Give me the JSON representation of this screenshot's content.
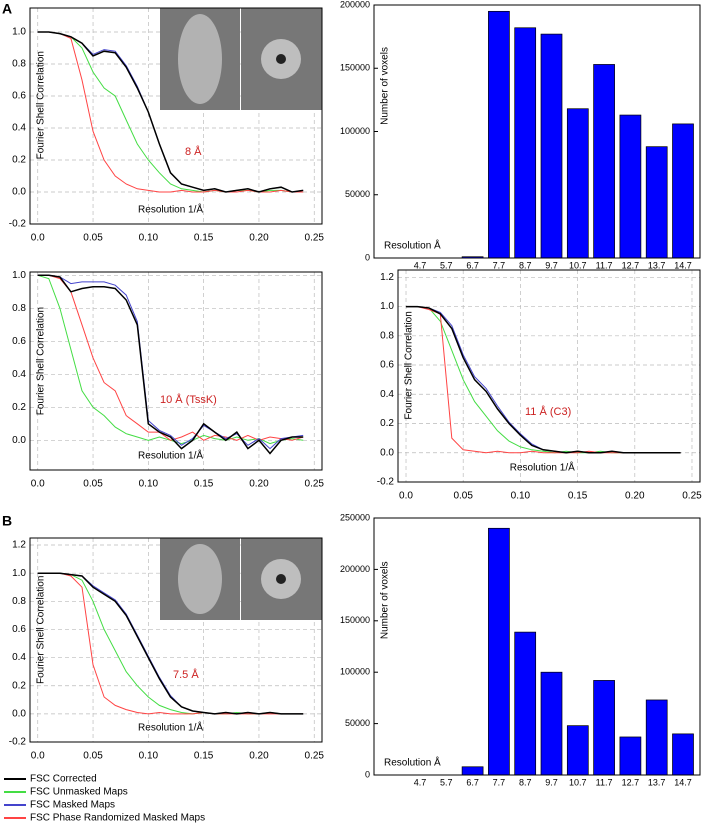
{
  "panels": [
    "A",
    "B"
  ],
  "chart_data": [
    {
      "type": "line",
      "annotation": "8 Å",
      "xlabel": "Resolution 1/Å",
      "ylabel": "Fourier Shell Correlation",
      "xlim": [
        -0.007,
        0.257
      ],
      "ylim": [
        -0.2,
        1.15
      ],
      "xticks": [
        {
          "value": 0,
          "label": "0.0"
        },
        0.05,
        {
          "value": 0.1,
          "label": "0.10"
        },
        0.15,
        {
          "value": 0.2,
          "label": "0.20"
        },
        0.25
      ],
      "yticks": [
        -0.2,
        {
          "value": 0,
          "label": "0.0"
        },
        0.2,
        0.4,
        0.6,
        0.8,
        {
          "value": 1,
          "label": "1.0"
        }
      ],
      "grid": true,
      "x": [
        0,
        0.01,
        0.02,
        0.03,
        0.04,
        0.05,
        0.06,
        0.07,
        0.08,
        0.09,
        0.1,
        0.11,
        0.12,
        0.13,
        0.14,
        0.15,
        0.16,
        0.17,
        0.18,
        0.19,
        0.2,
        0.21,
        0.22,
        0.23,
        0.24
      ],
      "series": [
        {
          "name": "FSC Unmasked Maps",
          "color": "#44dd44",
          "values": [
            1,
            1,
            0.99,
            0.97,
            0.9,
            0.75,
            0.65,
            0.6,
            0.45,
            0.3,
            0.2,
            0.12,
            0.05,
            0.02,
            0.01,
            0,
            0.01,
            0,
            0.01,
            0.01,
            0,
            0.01,
            0.01,
            0,
            0
          ]
        },
        {
          "name": "FSC Phase Randomized Masked Maps",
          "color": "#ff4444",
          "values": [
            1,
            1,
            0.99,
            0.96,
            0.7,
            0.38,
            0.2,
            0.1,
            0.05,
            0.02,
            0.01,
            0,
            0,
            0.01,
            0,
            0,
            0.01,
            0,
            0,
            0.01,
            0,
            0,
            0.01,
            0,
            0
          ]
        },
        {
          "name": "FSC Masked Maps",
          "color": "#4444cc",
          "values": [
            1,
            1,
            0.99,
            0.97,
            0.93,
            0.86,
            0.89,
            0.88,
            0.79,
            0.66,
            0.5,
            0.3,
            0.12,
            0.05,
            0.03,
            0.01,
            0.02,
            0,
            0.01,
            0.02,
            0,
            0.02,
            0.03,
            0,
            0.01
          ]
        },
        {
          "name": "FSC Corrected",
          "color": "#000000",
          "values": [
            1,
            1,
            0.99,
            0.97,
            0.93,
            0.85,
            0.88,
            0.87,
            0.78,
            0.65,
            0.5,
            0.3,
            0.12,
            0.05,
            0.03,
            0.01,
            0.02,
            0,
            0.01,
            0.02,
            0,
            0.02,
            0.03,
            0,
            0.01
          ]
        }
      ]
    },
    {
      "type": "bar",
      "xlabel": "Resolution Å",
      "ylabel": "Number of voxels",
      "color": "#0000ff",
      "categories": [
        "4.7",
        "5.7",
        "6.7",
        "7.7",
        "8.7",
        "9.7",
        "10.7",
        "11.7",
        "12.7",
        "13.7",
        "14.7"
      ],
      "values": [
        0,
        0,
        1000,
        195000,
        182000,
        177000,
        118000,
        153000,
        113000,
        88000,
        106000
      ],
      "ylim": [
        0,
        200000
      ],
      "yticks": [
        0,
        50000,
        100000,
        150000,
        200000
      ]
    },
    {
      "type": "line",
      "annotation": "10 Å (TssK)",
      "xlabel": "Resolution 1/Å",
      "ylabel": "Fourier Shell Correlation",
      "xlim": [
        -0.007,
        0.257
      ],
      "ylim": [
        -0.18,
        1.02
      ],
      "xticks": [
        {
          "value": 0,
          "label": "0.0"
        },
        0.05,
        {
          "value": 0.1,
          "label": "0.10"
        },
        0.15,
        {
          "value": 0.2,
          "label": "0.20"
        },
        0.25
      ],
      "yticks": [
        {
          "value": 0,
          "label": "0.0"
        },
        0.2,
        0.4,
        0.6,
        0.8,
        {
          "value": 1,
          "label": "1.0"
        }
      ],
      "grid": true,
      "x": [
        0,
        0.01,
        0.02,
        0.03,
        0.04,
        0.05,
        0.06,
        0.07,
        0.08,
        0.09,
        0.1,
        0.11,
        0.12,
        0.13,
        0.14,
        0.15,
        0.16,
        0.17,
        0.18,
        0.19,
        0.2,
        0.21,
        0.22,
        0.23,
        0.24
      ],
      "series": [
        {
          "name": "FSC Unmasked Maps",
          "color": "#44dd44",
          "values": [
            1,
            0.98,
            0.8,
            0.55,
            0.3,
            0.2,
            0.15,
            0.08,
            0.04,
            0.02,
            0,
            0.02,
            0,
            -0.02,
            0,
            0.03,
            0.01,
            0,
            0.02,
            0,
            0.01,
            -0.02,
            0,
            0.01,
            0
          ]
        },
        {
          "name": "FSC Phase Randomized Masked Maps",
          "color": "#ff4444",
          "values": [
            1,
            1,
            0.98,
            0.9,
            0.7,
            0.5,
            0.35,
            0.3,
            0.15,
            0.1,
            0.05,
            0.05,
            0,
            0.02,
            0.05,
            0,
            0.03,
            0.02,
            0,
            0.03,
            0,
            0.02,
            0.01,
            0,
            0.02
          ]
        },
        {
          "name": "FSC Masked Maps",
          "color": "#4444cc",
          "values": [
            1,
            1,
            0.99,
            0.95,
            0.96,
            0.96,
            0.96,
            0.94,
            0.88,
            0.72,
            0.12,
            0.06,
            0.03,
            -0.03,
            0.01,
            0.09,
            0.05,
            0.01,
            0.04,
            -0.03,
            0.01,
            -0.05,
            0.01,
            0.02,
            0.03
          ]
        },
        {
          "name": "FSC Corrected",
          "color": "#000000",
          "values": [
            1,
            1,
            0.99,
            0.9,
            0.92,
            0.93,
            0.93,
            0.92,
            0.85,
            0.7,
            0.1,
            0.05,
            0.02,
            -0.05,
            0,
            0.1,
            0.05,
            0,
            0.05,
            -0.05,
            0,
            -0.08,
            0,
            0.02,
            0.02
          ]
        }
      ]
    },
    {
      "type": "line",
      "annotation": "11 Å (C3)",
      "xlabel": "Resolution 1/Å",
      "ylabel": "Fourier Shell Correlation",
      "xlim": [
        -0.007,
        0.257
      ],
      "ylim": [
        -0.2,
        1.25
      ],
      "xticks": [
        {
          "value": 0,
          "label": "0.0"
        },
        0.05,
        {
          "value": 0.1,
          "label": "0.10"
        },
        0.15,
        {
          "value": 0.2,
          "label": "0.20"
        },
        0.25
      ],
      "yticks": [
        -0.2,
        {
          "value": 0,
          "label": "0.0"
        },
        0.2,
        0.4,
        0.6,
        0.8,
        {
          "value": 1,
          "label": "1.0"
        },
        1.2
      ],
      "grid": true,
      "x": [
        0,
        0.01,
        0.02,
        0.03,
        0.04,
        0.05,
        0.06,
        0.07,
        0.08,
        0.09,
        0.1,
        0.11,
        0.12,
        0.13,
        0.14,
        0.15,
        0.16,
        0.17,
        0.18,
        0.19,
        0.2,
        0.21,
        0.22,
        0.23,
        0.24
      ],
      "series": [
        {
          "name": "FSC Unmasked Maps",
          "color": "#44dd44",
          "values": [
            1,
            1,
            0.99,
            0.9,
            0.7,
            0.5,
            0.35,
            0.25,
            0.15,
            0.08,
            0.04,
            0.02,
            0.01,
            0,
            0.01,
            0,
            0,
            0.01,
            0,
            0,
            0,
            0,
            0,
            0,
            0
          ]
        },
        {
          "name": "FSC Phase Randomized Masked Maps",
          "color": "#ff4444",
          "values": [
            1,
            1,
            0.98,
            0.95,
            0.1,
            0.02,
            0.01,
            0,
            0.01,
            0,
            0,
            0.01,
            0,
            0,
            0,
            0,
            0.01,
            0,
            0,
            0,
            0,
            0,
            0,
            0,
            0
          ]
        },
        {
          "name": "FSC Masked Maps",
          "color": "#4444cc",
          "values": [
            1,
            1,
            0.99,
            0.96,
            0.87,
            0.67,
            0.52,
            0.44,
            0.32,
            0.21,
            0.13,
            0.06,
            0.02,
            0.01,
            0,
            0.01,
            0,
            0,
            0.01,
            0,
            0,
            0,
            0,
            0,
            0
          ]
        },
        {
          "name": "FSC Corrected",
          "color": "#000000",
          "values": [
            1,
            1,
            0.99,
            0.95,
            0.85,
            0.65,
            0.5,
            0.42,
            0.3,
            0.2,
            0.12,
            0.05,
            0.02,
            0.01,
            0,
            0.01,
            0,
            0,
            0.01,
            0,
            0,
            0,
            0,
            0,
            0
          ]
        }
      ]
    },
    {
      "type": "line",
      "annotation": "7.5 Å",
      "xlabel": "Resolution 1/Å",
      "ylabel": "Fourier Shell Correlation",
      "legend": "below",
      "xlim": [
        -0.007,
        0.257
      ],
      "ylim": [
        -0.2,
        1.25
      ],
      "xticks": [
        {
          "value": 0,
          "label": "0.0"
        },
        0.05,
        {
          "value": 0.1,
          "label": "0.10"
        },
        0.15,
        {
          "value": 0.2,
          "label": "0.20"
        },
        0.25
      ],
      "yticks": [
        -0.2,
        {
          "value": 0,
          "label": "0.0"
        },
        0.2,
        0.4,
        0.6,
        0.8,
        {
          "value": 1,
          "label": "1.0"
        },
        1.2
      ],
      "grid": true,
      "x": [
        0,
        0.01,
        0.02,
        0.03,
        0.04,
        0.05,
        0.06,
        0.07,
        0.08,
        0.09,
        0.1,
        0.11,
        0.12,
        0.13,
        0.14,
        0.15,
        0.16,
        0.17,
        0.18,
        0.19,
        0.2,
        0.21,
        0.22,
        0.23,
        0.24
      ],
      "series": [
        {
          "name": "FSC Unmasked Maps",
          "color": "#44dd44",
          "values": [
            1,
            1,
            1,
            0.99,
            0.95,
            0.8,
            0.6,
            0.45,
            0.3,
            0.2,
            0.12,
            0.06,
            0.03,
            0.01,
            0,
            0.01,
            0,
            0,
            0.01,
            0,
            0,
            0.01,
            0,
            0,
            0
          ]
        },
        {
          "name": "FSC Phase Randomized Masked Maps",
          "color": "#ff4444",
          "values": [
            1,
            1,
            1,
            0.98,
            0.9,
            0.35,
            0.12,
            0.06,
            0.03,
            0.01,
            0,
            0.01,
            0,
            0,
            0,
            0.01,
            0,
            0,
            0,
            0,
            0,
            0,
            0,
            0,
            0
          ]
        },
        {
          "name": "FSC Masked Maps",
          "color": "#4444cc",
          "values": [
            1,
            1,
            1,
            0.99,
            0.98,
            0.91,
            0.86,
            0.81,
            0.71,
            0.56,
            0.41,
            0.26,
            0.13,
            0.05,
            0.02,
            0.01,
            0,
            0.01,
            0,
            0.01,
            0,
            0.01,
            0,
            0,
            0
          ]
        },
        {
          "name": "FSC Corrected",
          "color": "#000000",
          "values": [
            1,
            1,
            1,
            0.99,
            0.98,
            0.9,
            0.85,
            0.8,
            0.7,
            0.55,
            0.4,
            0.25,
            0.12,
            0.05,
            0.02,
            0.01,
            0,
            0.01,
            0,
            0.01,
            0,
            0.01,
            0,
            0,
            0
          ]
        }
      ]
    },
    {
      "type": "bar",
      "xlabel": "Resolution Å",
      "ylabel": "Number of voxels",
      "color": "#0000ff",
      "categories": [
        "4.7",
        "5.7",
        "6.7",
        "7.7",
        "8.7",
        "9.7",
        "10.7",
        "11.7",
        "12.7",
        "13.7",
        "14.7"
      ],
      "values": [
        0,
        0,
        8000,
        240000,
        139000,
        100000,
        48000,
        92000,
        37000,
        73000,
        40000
      ],
      "ylim": [
        0,
        250000
      ],
      "yticks": [
        0,
        50000,
        100000,
        150000,
        200000,
        250000
      ]
    }
  ]
}
